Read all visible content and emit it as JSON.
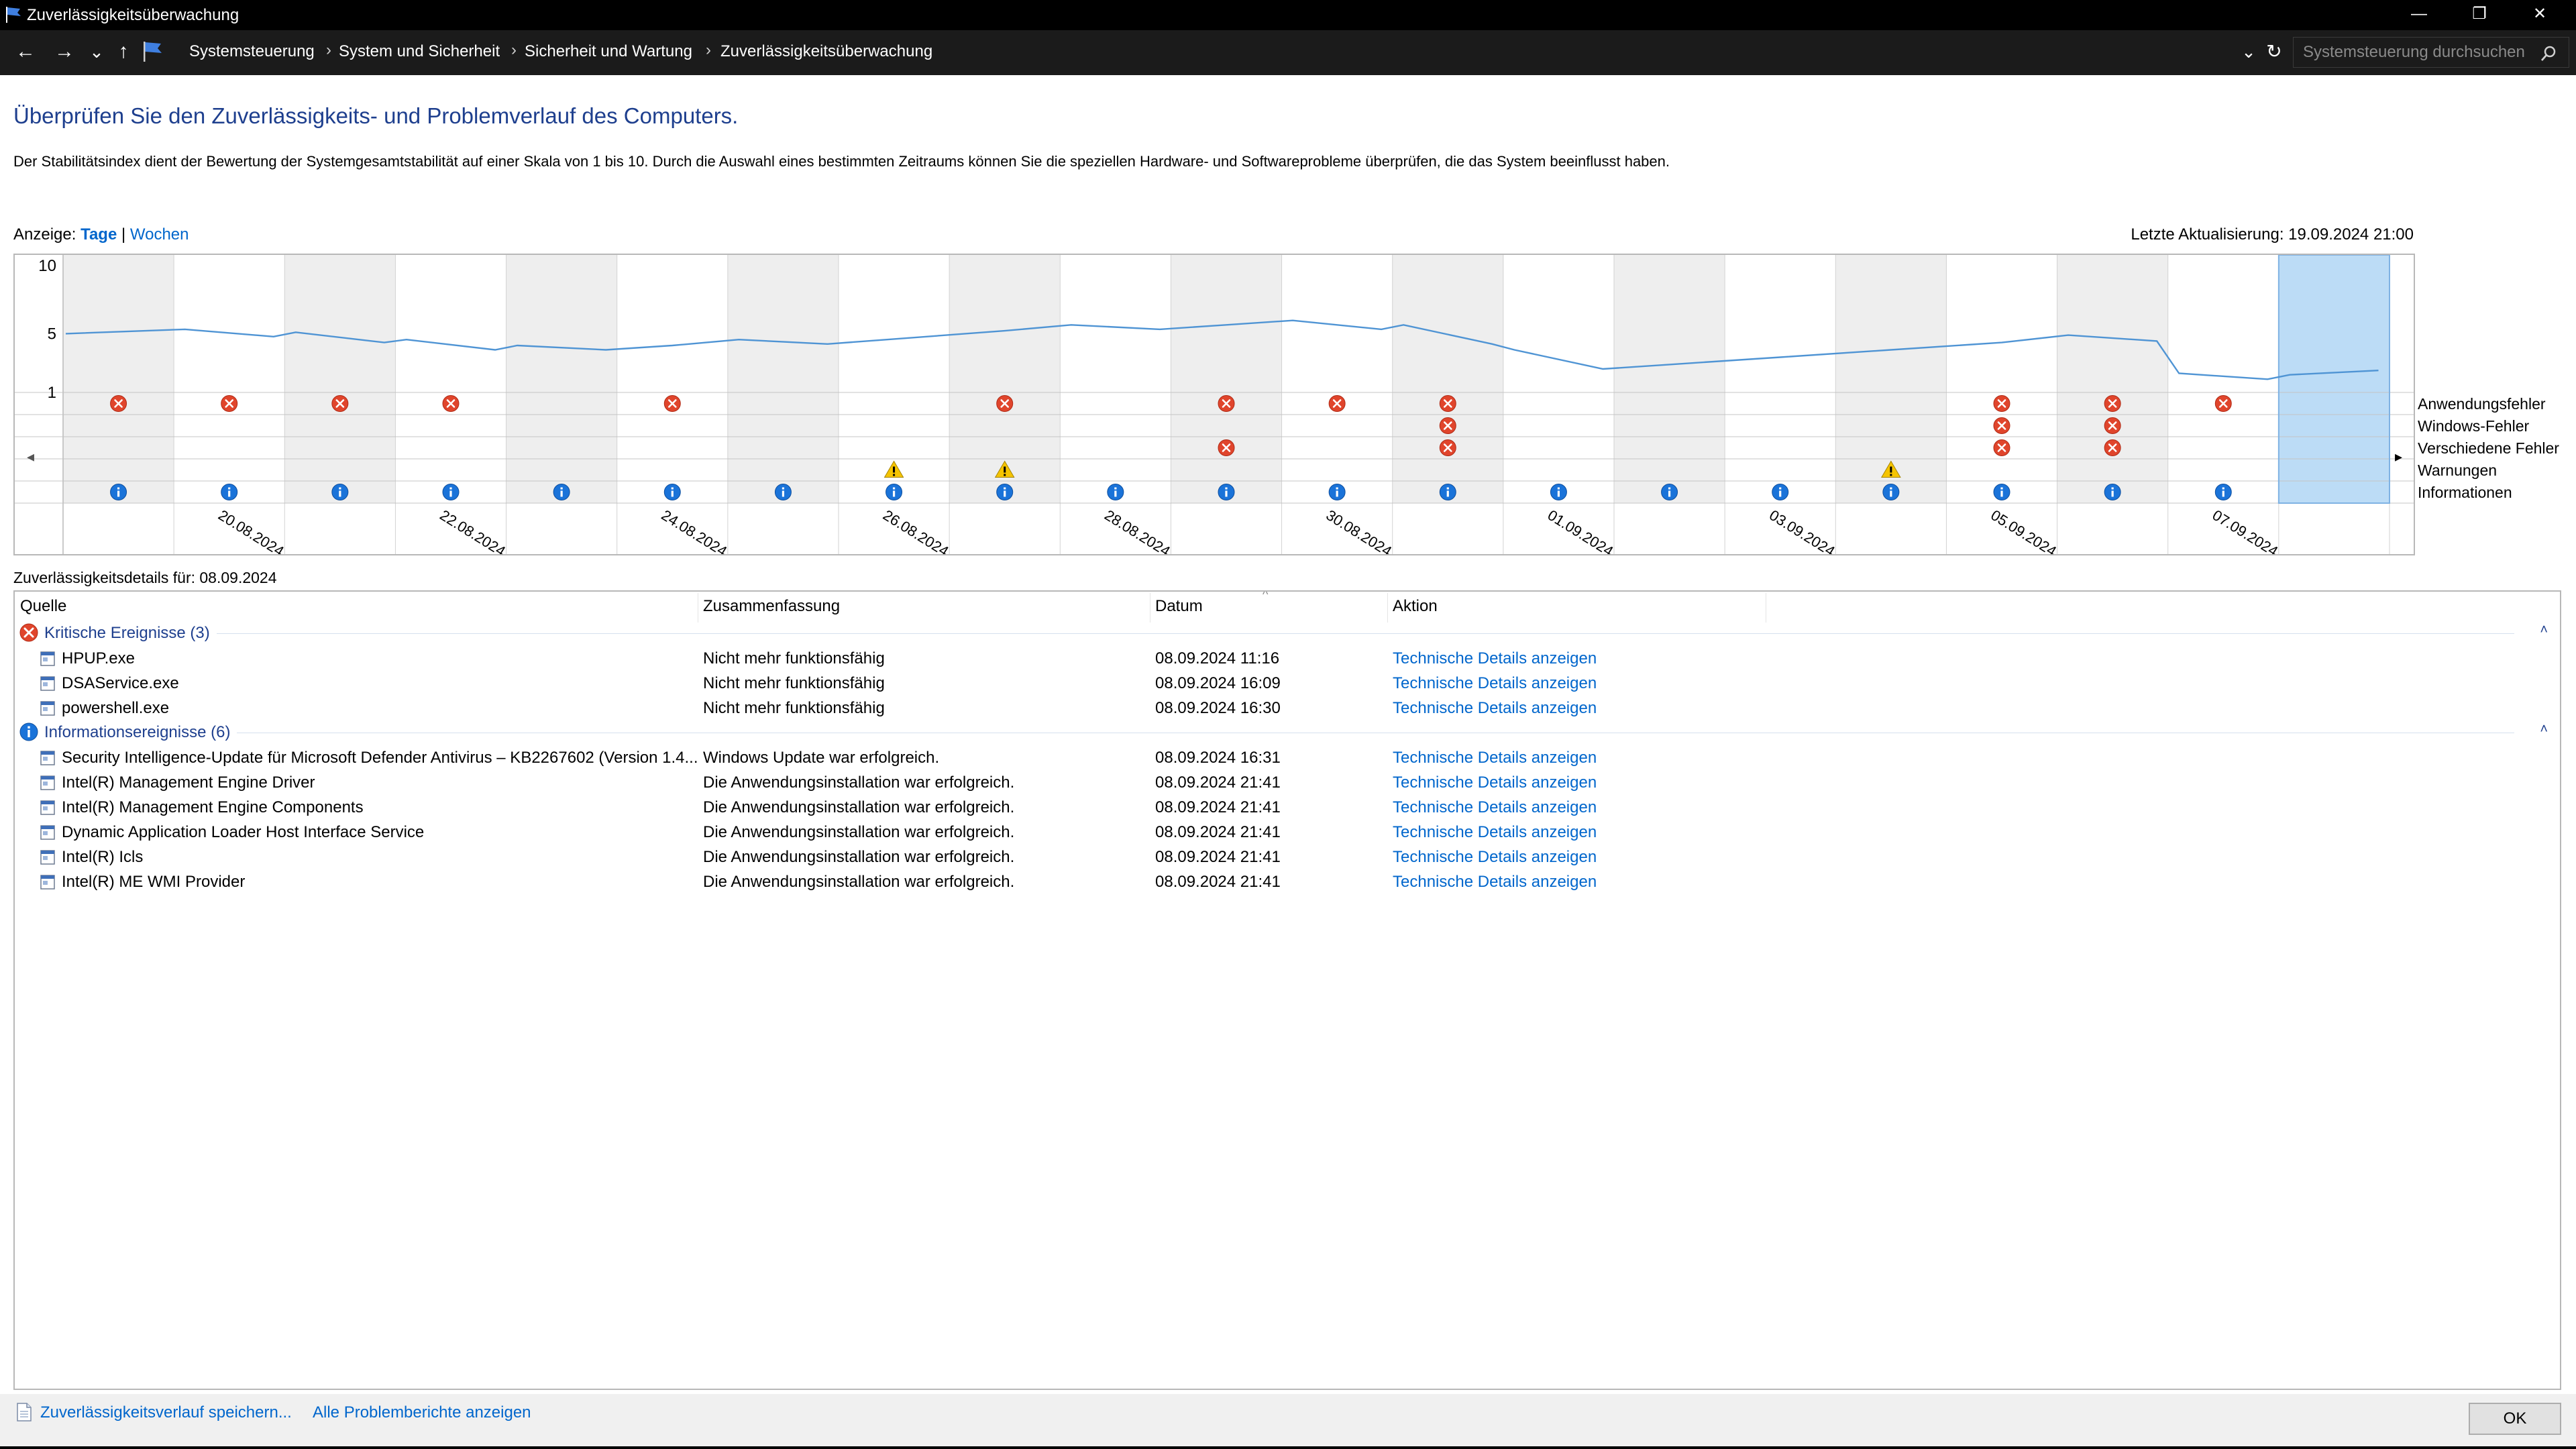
{
  "window": {
    "title": "Zuverlässigkeitsüberwachung",
    "minimize": "—",
    "restore": "❐",
    "close": "✕"
  },
  "address": {
    "back": "←",
    "forward": "→",
    "recent": "⌄",
    "up": "↑",
    "breadcrumbs": [
      "Systemsteuerung",
      "System und Sicherheit",
      "Sicherheit und Wartung",
      "Zuverlässigkeitsüberwachung"
    ],
    "separator": "›",
    "dropdown": "⌄",
    "refresh": "↻",
    "search_placeholder": "Systemsteuerung durchsuchen"
  },
  "heading": "Überprüfen Sie den Zuverlässigkeits- und Problemverlauf des Computers.",
  "description": "Der Stabilitätsindex dient der Bewertung der Systemgesamtstabilität auf einer Skala von 1 bis 10. Durch die Auswahl eines bestimmten Zeitraums können Sie die speziellen Hardware- und Softwareprobleme überprüfen, die das System beeinflusst haben.",
  "view": {
    "label": "Anzeige:",
    "days": "Tage",
    "separator": "|",
    "weeks": "Wochen"
  },
  "last_update": "Letzte Aktualisierung: 19.09.2024 21:00",
  "chart_data": {
    "type": "line",
    "y_ticks": [
      "10",
      "5",
      "1"
    ],
    "ylim": [
      1,
      10
    ],
    "dates": [
      "19.08.2024",
      "20.08.2024",
      "21.08.2024",
      "22.08.2024",
      "23.08.2024",
      "24.08.2024",
      "25.08.2024",
      "26.08.2024",
      "27.08.2024",
      "28.08.2024",
      "29.08.2024",
      "30.08.2024",
      "31.08.2024",
      "01.09.2024",
      "02.09.2024",
      "03.09.2024",
      "04.09.2024",
      "05.09.2024",
      "06.09.2024",
      "07.09.2024",
      "08.09.2024"
    ],
    "x_tick_labels": [
      "20.08.2024",
      "22.08.2024",
      "24.08.2024",
      "26.08.2024",
      "28.08.2024",
      "30.08.2024",
      "01.09.2024",
      "03.09.2024",
      "05.09.2024",
      "07.09.2024"
    ],
    "selected_date": "08.09.2024",
    "stability_index": [
      [
        "19.08.2024",
        5.0
      ],
      [
        "20.08.2024",
        5.3
      ],
      [
        "20.08.2024",
        4.8
      ],
      [
        "21.08.2024",
        5.1
      ],
      [
        "21.08.2024",
        4.4
      ],
      [
        "22.08.2024",
        4.6
      ],
      [
        "22.08.2024",
        3.9
      ],
      [
        "23.08.2024",
        4.2
      ],
      [
        "23.08.2024",
        3.9
      ],
      [
        "24.08.2024",
        4.2
      ],
      [
        "25.08.2024",
        4.6
      ],
      [
        "25.08.2024",
        4.3
      ],
      [
        "27.08.2024",
        5.2
      ],
      [
        "28.08.2024",
        5.6
      ],
      [
        "28.08.2024",
        5.3
      ],
      [
        "29.08.2024",
        5.6
      ],
      [
        "30.08.2024",
        5.9
      ],
      [
        "30.08.2024",
        5.3
      ],
      [
        "31.08.2024",
        5.6
      ],
      [
        "31.08.2024",
        4.3
      ],
      [
        "01.09.2024",
        3.9
      ],
      [
        "01.09.2024",
        2.6
      ],
      [
        "02.09.2024",
        2.9
      ],
      [
        "03.09.2024",
        3.4
      ],
      [
        "04.09.2024",
        3.9
      ],
      [
        "05.09.2024",
        4.4
      ],
      [
        "06.09.2024",
        4.9
      ],
      [
        "06.09.2024",
        4.5
      ],
      [
        "07.09.2024",
        2.3
      ],
      [
        "07.09.2024",
        1.9
      ],
      [
        "08.09.2024",
        2.2
      ],
      [
        "08.09.2024",
        2.5
      ]
    ],
    "event_rows": [
      "Anwendungsfehler",
      "Windows-Fehler",
      "Verschiedene Fehler",
      "Warnungen",
      "Informationen"
    ],
    "events": {
      "Anwendungsfehler": [
        "19.08.2024",
        "20.08.2024",
        "21.08.2024",
        "22.08.2024",
        "24.08.2024",
        "27.08.2024",
        "29.08.2024",
        "30.08.2024",
        "31.08.2024",
        "05.09.2024",
        "06.09.2024",
        "07.09.2024"
      ],
      "Windows-Fehler": [
        "31.08.2024",
        "05.09.2024",
        "06.09.2024"
      ],
      "Verschiedene Fehler": [
        "29.08.2024",
        "31.08.2024",
        "05.09.2024",
        "06.09.2024"
      ],
      "Warnungen": [
        "26.08.2024",
        "27.08.2024",
        "04.09.2024"
      ],
      "Informationen": [
        "19.08.2024",
        "20.08.2024",
        "21.08.2024",
        "22.08.2024",
        "23.08.2024",
        "24.08.2024",
        "25.08.2024",
        "26.08.2024",
        "27.08.2024",
        "28.08.2024",
        "29.08.2024",
        "30.08.2024",
        "31.08.2024",
        "01.09.2024",
        "02.09.2024",
        "03.09.2024",
        "04.09.2024",
        "05.09.2024",
        "06.09.2024",
        "07.09.2024"
      ]
    },
    "nav_left": "◂",
    "nav_right": "▸",
    "colors": {
      "line": "#4f94d4",
      "selected": "#bcdcf6",
      "error": "#e0452c",
      "warning": "#f5c400",
      "info": "#1a73d9",
      "stripe": "#eeeeee"
    }
  },
  "details": {
    "title": "Zuverlässigkeitsdetails für: 08.09.2024",
    "columns": [
      "Quelle",
      "Zusammenfassung",
      "Datum",
      "Aktion"
    ],
    "sort_indicator": "^",
    "groups": [
      {
        "label": "Kritische Ereignisse (3)",
        "icon": "error-icon",
        "collapse": "˄",
        "rows": [
          {
            "source": "HPUP.exe",
            "summary": "Nicht mehr funktionsfähig",
            "date": "08.09.2024 11:16",
            "action": "Technische Details anzeigen"
          },
          {
            "source": "DSAService.exe",
            "summary": "Nicht mehr funktionsfähig",
            "date": "08.09.2024 16:09",
            "action": "Technische Details anzeigen"
          },
          {
            "source": "powershell.exe",
            "summary": "Nicht mehr funktionsfähig",
            "date": "08.09.2024 16:30",
            "action": "Technische Details anzeigen"
          }
        ]
      },
      {
        "label": "Informationsereignisse (6)",
        "icon": "info-icon",
        "collapse": "˄",
        "rows": [
          {
            "source": "Security Intelligence-Update für Microsoft Defender Antivirus – KB2267602 (Version 1.4...",
            "summary": "Windows Update war erfolgreich.",
            "date": "08.09.2024 16:31",
            "action": "Technische Details anzeigen"
          },
          {
            "source": "Intel(R) Management Engine Driver",
            "summary": "Die Anwendungsinstallation war erfolgreich.",
            "date": "08.09.2024 21:41",
            "action": "Technische Details anzeigen"
          },
          {
            "source": "Intel(R) Management Engine Components",
            "summary": "Die Anwendungsinstallation war erfolgreich.",
            "date": "08.09.2024 21:41",
            "action": "Technische Details anzeigen"
          },
          {
            "source": "Dynamic Application Loader Host Interface Service",
            "summary": "Die Anwendungsinstallation war erfolgreich.",
            "date": "08.09.2024 21:41",
            "action": "Technische Details anzeigen"
          },
          {
            "source": "Intel(R) Icls",
            "summary": "Die Anwendungsinstallation war erfolgreich.",
            "date": "08.09.2024 21:41",
            "action": "Technische Details anzeigen"
          },
          {
            "source": "Intel(R) ME WMI Provider",
            "summary": "Die Anwendungsinstallation war erfolgreich.",
            "date": "08.09.2024 21:41",
            "action": "Technische Details anzeigen"
          }
        ]
      }
    ]
  },
  "footer": {
    "save_link": "Zuverlässigkeitsverlauf speichern...",
    "reports_link": "Alle Problemberichte anzeigen",
    "ok": "OK"
  }
}
